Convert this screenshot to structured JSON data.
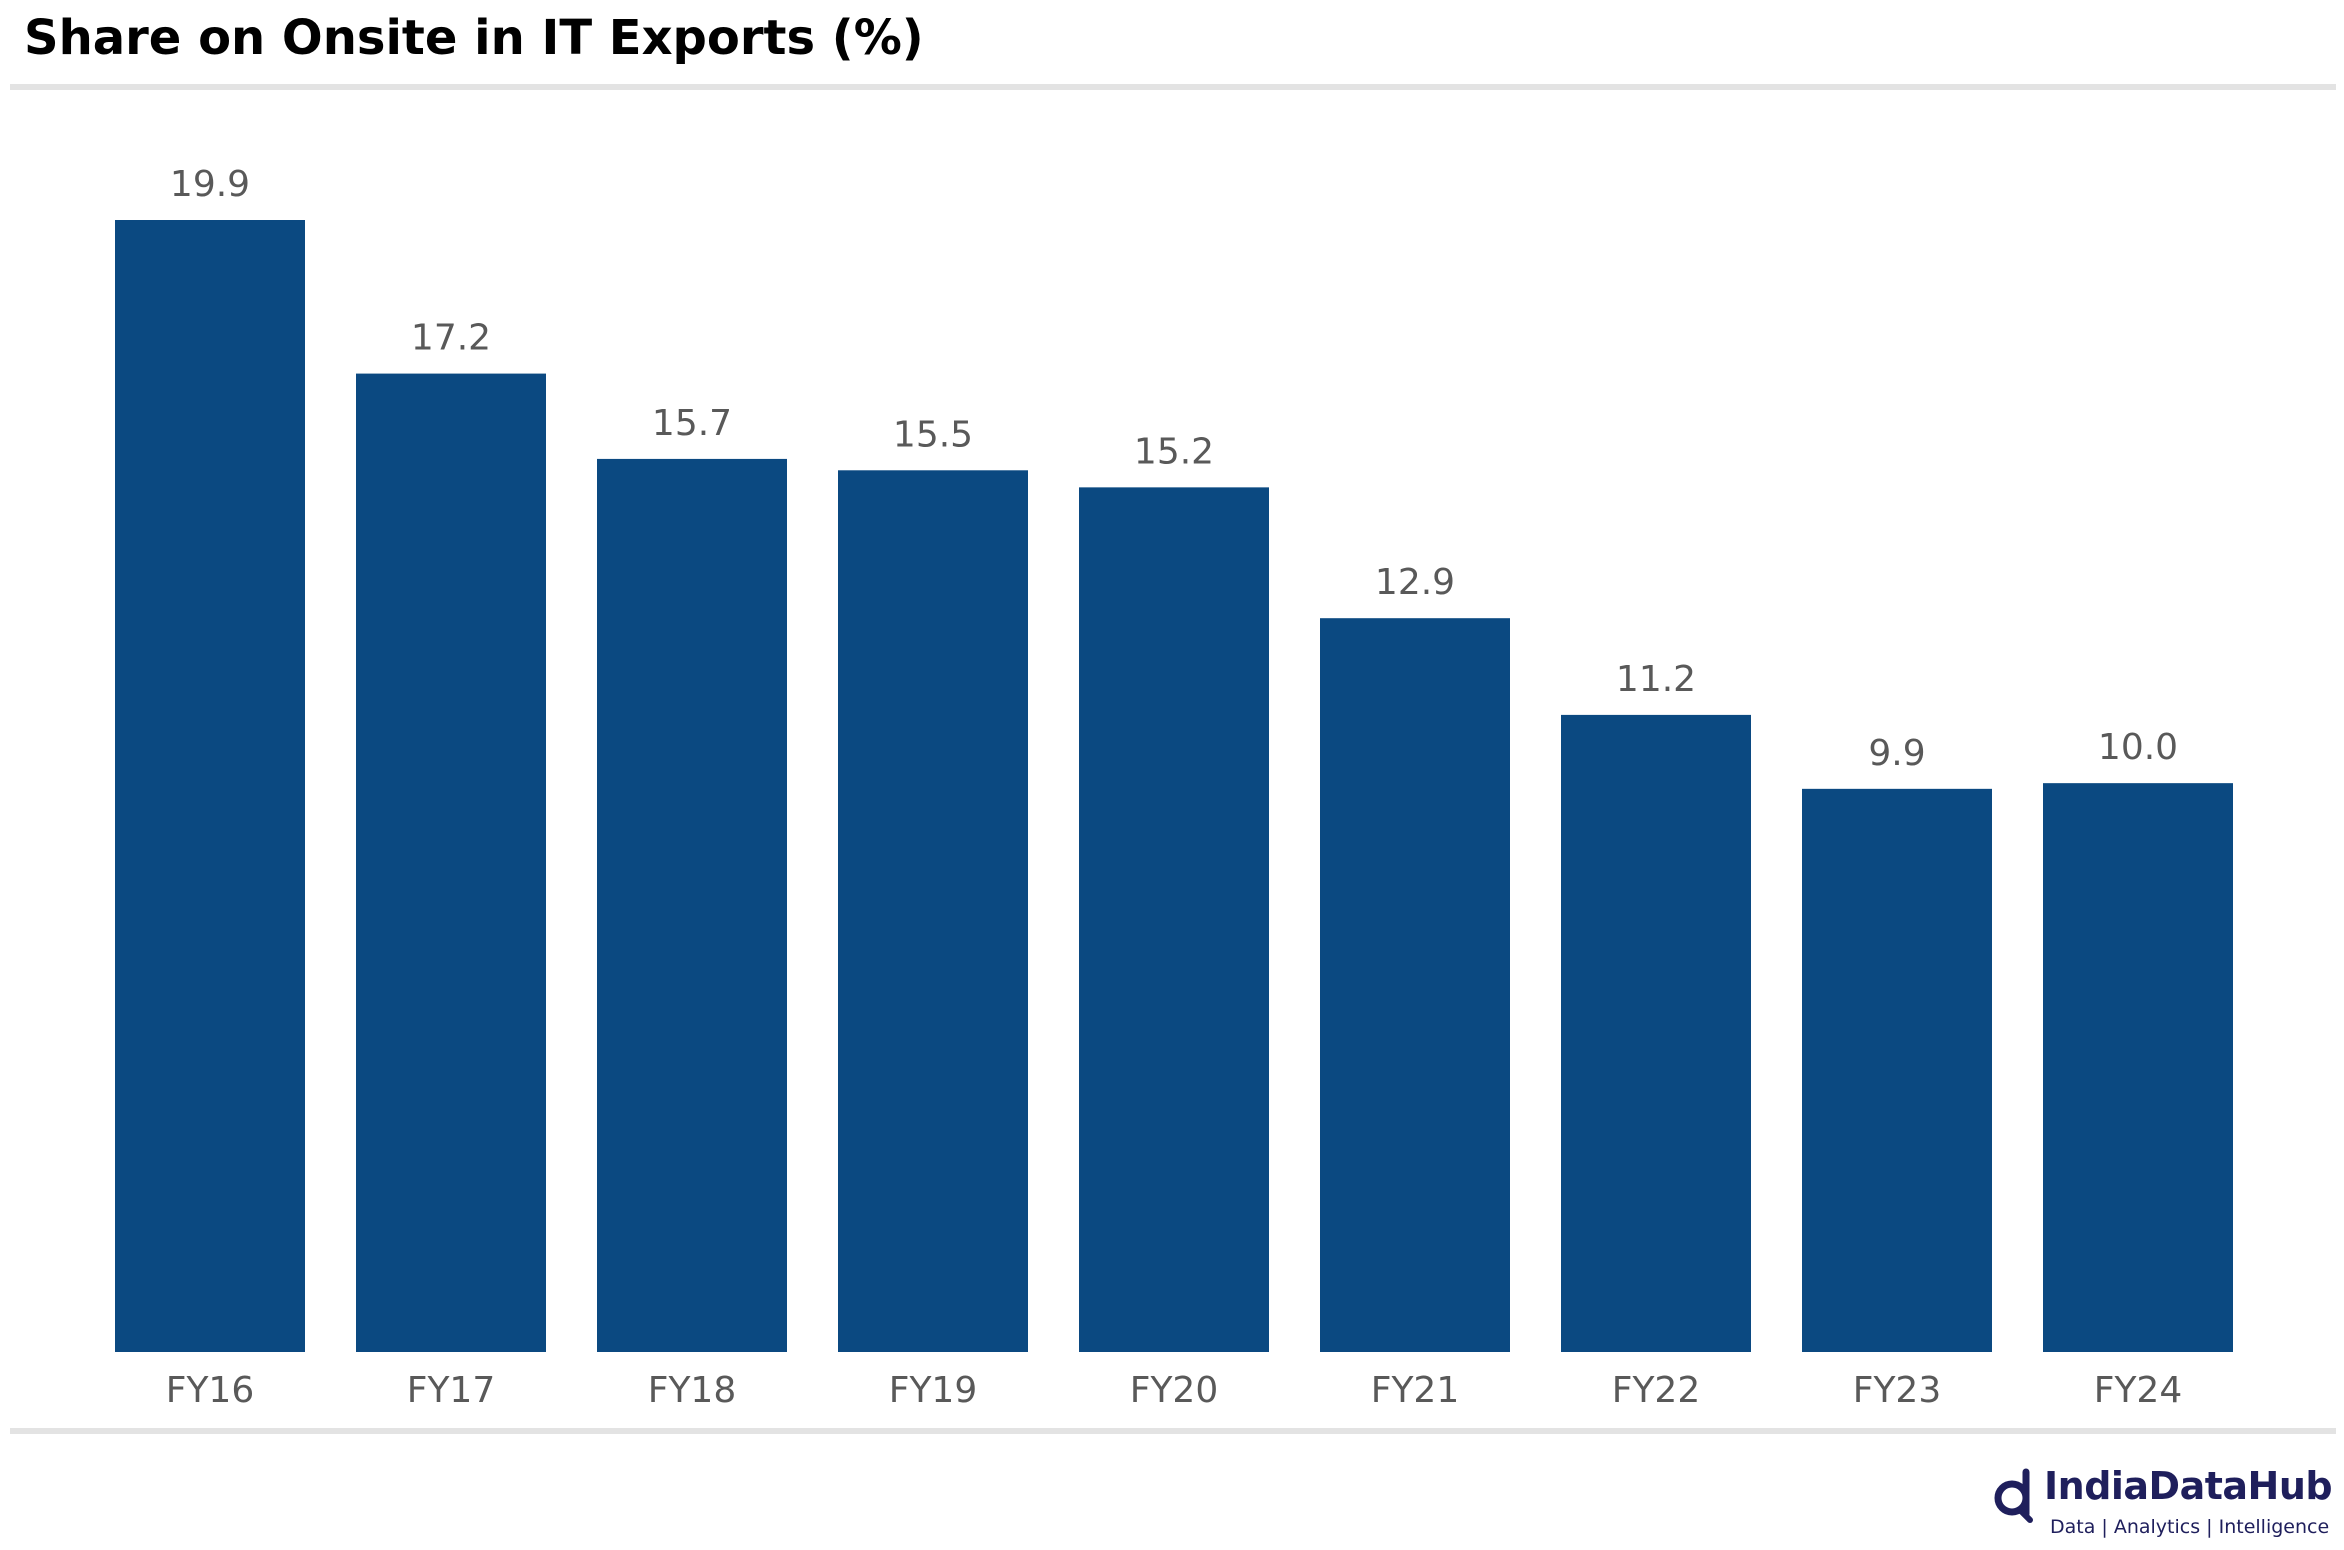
{
  "title": "Share on Onsite in IT Exports (%)",
  "chart_data": {
    "type": "bar",
    "title": "Share on Onsite in IT Exports (%)",
    "categories": [
      "FY16",
      "FY17",
      "FY18",
      "FY19",
      "FY20",
      "FY21",
      "FY22",
      "FY23",
      "FY24"
    ],
    "values": [
      19.9,
      17.2,
      15.7,
      15.5,
      15.2,
      12.9,
      11.2,
      9.9,
      10.0
    ],
    "value_labels": [
      "19.9",
      "17.2",
      "15.7",
      "15.5",
      "15.2",
      "12.9",
      "11.2",
      "9.9",
      "10.0"
    ],
    "xlabel": "",
    "ylabel": "",
    "ylim": [
      0,
      19.9
    ],
    "grid": false,
    "legend": "none",
    "bar_color": "#0b4981"
  },
  "logo": {
    "name": "IndiaDataHub",
    "tagline": "Data | Analytics | Intelligence",
    "color": "#1f1f5c"
  }
}
